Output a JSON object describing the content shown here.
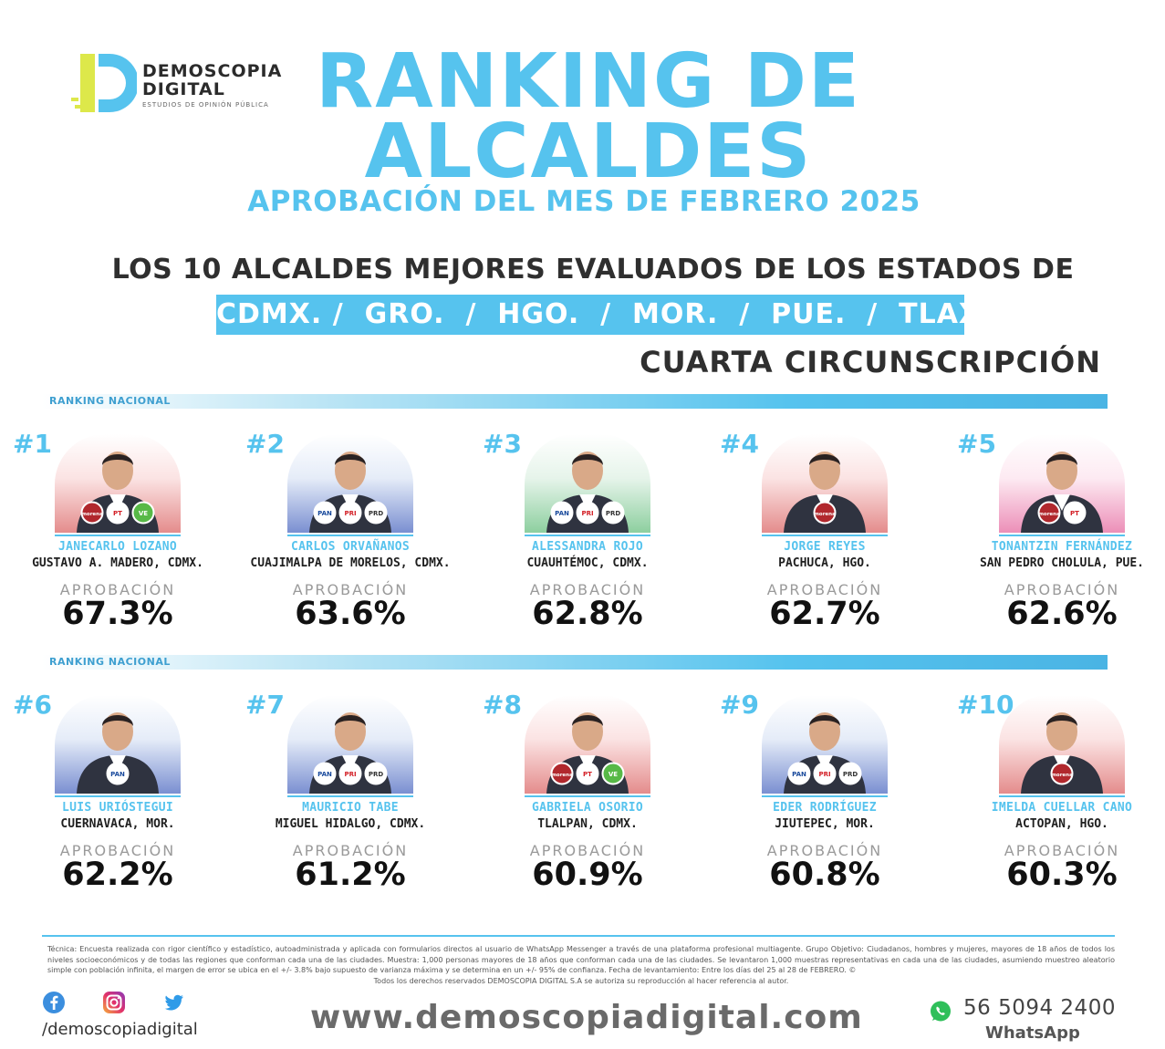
{
  "brand": {
    "line1": "DEMOSCOPIA",
    "line2": "DIGITAL",
    "tagline": "ESTUDIOS DE OPINIÓN PÚBLICA",
    "accent": "#56c3ee",
    "logo_yellow": "#dde84a",
    "logo_blue": "#56c3ee"
  },
  "header": {
    "title_line1": "RANKING DE",
    "title_line2": "ALCALDES",
    "subtitle": "APROBACIÓN DEL MES DE FEBRERO 2025",
    "headline": "LOS 10 ALCALDES MEJORES EVALUADOS DE LOS ESTADOS DE",
    "states": "CDMX. /  GRO.  /  HGO.  /  MOR.  /  PUE.  /  TLAX.",
    "circunscripcion": "CUARTA CIRCUNSCRIPCIÓN"
  },
  "ranking_label": "RANKING NACIONAL",
  "approval_label": "APROBACIÓN",
  "mayors": [
    {
      "rank": "#1",
      "name": "JANECARLO LOZANO",
      "place": "GUSTAVO A. MADERO, CDMX.",
      "approval": "67.3%",
      "bg": "red",
      "parties": [
        "MORENA",
        "PT",
        "PVEM"
      ]
    },
    {
      "rank": "#2",
      "name": "CARLOS ORVAÑANOS",
      "place": "CUAJIMALPA DE MORELOS, CDMX.",
      "approval": "63.6%",
      "bg": "blue",
      "parties": [
        "PAN",
        "PRI",
        "PRD"
      ]
    },
    {
      "rank": "#3",
      "name": "ALESSANDRA ROJO",
      "place": "CUAUHTÉMOC, CDMX.",
      "approval": "62.8%",
      "bg": "green",
      "parties": [
        "PAN",
        "PRI",
        "PRD"
      ]
    },
    {
      "rank": "#4",
      "name": "JORGE REYES",
      "place": "PACHUCA, HGO.",
      "approval": "62.7%",
      "bg": "red",
      "parties": [
        "MORENA"
      ]
    },
    {
      "rank": "#5",
      "name": "TONANTZIN FERNÁNDEZ",
      "place": "SAN PEDRO CHOLULA, PUE.",
      "approval": "62.6%",
      "bg": "pink",
      "parties": [
        "MORENA",
        "PT"
      ]
    },
    {
      "rank": "#6",
      "name": "LUIS URIÓSTEGUI",
      "place": "CUERNAVACA, MOR.",
      "approval": "62.2%",
      "bg": "blue",
      "parties": [
        "PAN"
      ]
    },
    {
      "rank": "#7",
      "name": "MAURICIO TABE",
      "place": "MIGUEL HIDALGO, CDMX.",
      "approval": "61.2%",
      "bg": "blue",
      "parties": [
        "PAN",
        "PRI",
        "PRD"
      ]
    },
    {
      "rank": "#8",
      "name": "GABRIELA OSORIO",
      "place": "TLALPAN, CDMX.",
      "approval": "60.9%",
      "bg": "red",
      "parties": [
        "MORENA",
        "PT",
        "PVEM"
      ]
    },
    {
      "rank": "#9",
      "name": "EDER RODRÍGUEZ",
      "place": "JIUTEPEC, MOR.",
      "approval": "60.8%",
      "bg": "blue",
      "parties": [
        "PAN",
        "PRI",
        "PRD"
      ]
    },
    {
      "rank": "#10",
      "name": "IMELDA CUELLAR CANO",
      "place": "ACTOPAN, HGO.",
      "approval": "60.3%",
      "bg": "red",
      "parties": [
        "MORENA"
      ]
    }
  ],
  "footer": {
    "technical": "Técnica: Encuesta realizada con rigor científico y estadístico, autoadministrada y aplicada con formularios directos al usuario de WhatsApp Messenger a través de una plataforma profesional multiagente. Grupo Objetivo: Ciudadanos, hombres y mujeres, mayores de 18 años de todos los niveles socioeconómicos y de todas las regiones que conforman cada una de las ciudades. Muestra: 1,000 personas mayores de 18 años que conforman cada una de las ciudades. Se levantaron 1,000 muestras representativas en cada una de las ciudades, asumiendo muestreo aleatorio simple con población infinita, el margen de error se ubica en el +/- 3.8% bajo supuesto de varianza máxima y se determina en un +/- 95% de confianza. Fecha de levantamiento: Entre los días del 25 al 28 de FEBRERO. ©",
    "rights": "Todos los derechos reservados DEMOSCOPIA DIGITAL S.A se autoriza su reproducción al hacer referencia al autor.",
    "social_handle": "/demoscopiadigital",
    "website": "www.demoscopiadigital.com",
    "whatsapp_number": "56 5094 2400",
    "whatsapp_label": "WhatsApp"
  }
}
